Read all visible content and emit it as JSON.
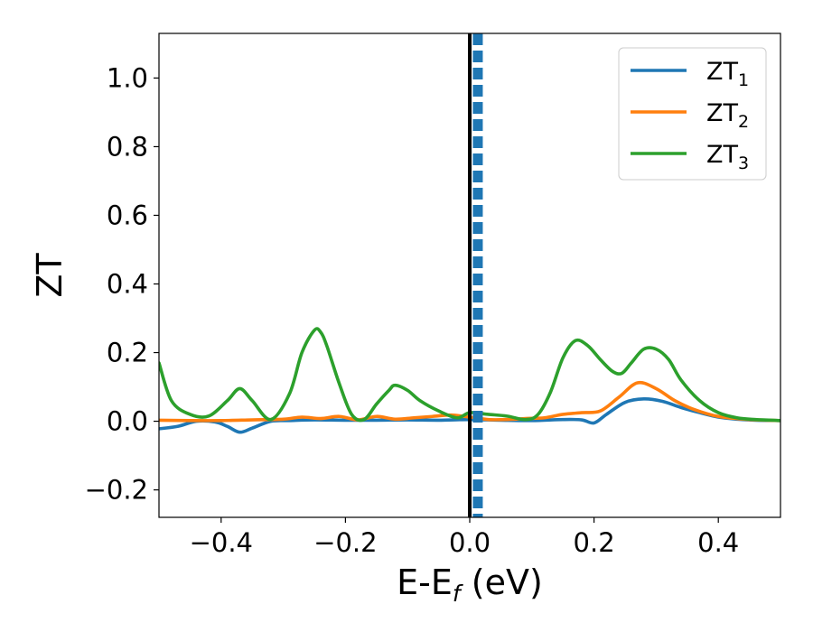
{
  "chart_data": {
    "type": "line",
    "title": "",
    "xlabel": "E-E",
    "xlabel_sub": "f",
    "xlabel_unit": " (eV)",
    "ylabel": "ZT",
    "xlim": [
      -0.5,
      0.5
    ],
    "ylim": [
      -0.28,
      1.13
    ],
    "xticks": [
      -0.4,
      -0.2,
      0.0,
      0.2,
      0.4
    ],
    "xtick_labels": [
      "−0.4",
      "−0.2",
      "0.0",
      "0.2",
      "0.4"
    ],
    "yticks": [
      -0.2,
      0.0,
      0.2,
      0.4,
      0.6,
      0.8,
      1.0
    ],
    "ytick_labels": [
      "−0.2",
      "0.0",
      "0.2",
      "0.4",
      "0.6",
      "0.8",
      "1.0"
    ],
    "grid": false,
    "legend_placement": "top-right",
    "vertical_lines": [
      {
        "x": 0.0,
        "style": "solid",
        "color": "#000000"
      },
      {
        "x": 0.013,
        "style": "dashed",
        "color": "#1f77b4"
      }
    ],
    "series": [
      {
        "name": "ZT",
        "name_sub": "1",
        "color": "#1f77b4",
        "x": [
          -0.5,
          -0.47,
          -0.44,
          -0.41,
          -0.39,
          -0.37,
          -0.35,
          -0.32,
          -0.29,
          -0.25,
          -0.2,
          -0.15,
          -0.1,
          -0.05,
          0.0,
          0.05,
          0.1,
          0.15,
          0.18,
          0.2,
          0.22,
          0.25,
          0.28,
          0.31,
          0.34,
          0.37,
          0.4,
          0.43,
          0.46,
          0.5
        ],
        "y": [
          -0.022,
          -0.015,
          0.0,
          -0.002,
          -0.015,
          -0.032,
          -0.02,
          0.0,
          0.002,
          0.004,
          0.003,
          0.003,
          0.004,
          0.003,
          0.005,
          0.003,
          0.002,
          0.005,
          0.004,
          -0.005,
          0.02,
          0.055,
          0.065,
          0.058,
          0.04,
          0.025,
          0.012,
          0.006,
          0.003,
          0.002
        ]
      },
      {
        "name": "ZT",
        "name_sub": "2",
        "color": "#ff7f0e",
        "x": [
          -0.5,
          -0.45,
          -0.4,
          -0.35,
          -0.3,
          -0.27,
          -0.24,
          -0.21,
          -0.18,
          -0.15,
          -0.12,
          -0.09,
          -0.06,
          -0.03,
          0.0,
          0.03,
          0.06,
          0.09,
          0.12,
          0.15,
          0.18,
          0.21,
          0.24,
          0.27,
          0.3,
          0.33,
          0.36,
          0.4,
          0.45,
          0.5
        ],
        "y": [
          0.003,
          0.002,
          0.002,
          0.004,
          0.006,
          0.012,
          0.008,
          0.014,
          0.004,
          0.014,
          0.006,
          0.01,
          0.014,
          0.018,
          0.012,
          0.005,
          0.005,
          0.008,
          0.01,
          0.02,
          0.025,
          0.03,
          0.07,
          0.112,
          0.095,
          0.06,
          0.035,
          0.014,
          0.005,
          0.002
        ]
      },
      {
        "name": "ZT",
        "name_sub": "3",
        "color": "#2ca02c",
        "x": [
          -0.5,
          -0.48,
          -0.45,
          -0.42,
          -0.39,
          -0.37,
          -0.35,
          -0.32,
          -0.29,
          -0.27,
          -0.25,
          -0.24,
          -0.23,
          -0.21,
          -0.19,
          -0.17,
          -0.15,
          -0.13,
          -0.12,
          -0.1,
          -0.08,
          -0.05,
          -0.02,
          0.0,
          0.03,
          0.06,
          0.09,
          0.11,
          0.13,
          0.15,
          0.17,
          0.19,
          0.21,
          0.23,
          0.245,
          0.26,
          0.28,
          0.3,
          0.32,
          0.34,
          0.37,
          0.4,
          0.43,
          0.46,
          0.5
        ],
        "y": [
          0.17,
          0.06,
          0.02,
          0.015,
          0.06,
          0.095,
          0.06,
          0.005,
          0.08,
          0.2,
          0.265,
          0.26,
          0.22,
          0.11,
          0.02,
          0.005,
          0.05,
          0.09,
          0.105,
          0.09,
          0.06,
          0.03,
          0.01,
          0.025,
          0.02,
          0.015,
          0.005,
          0.02,
          0.085,
          0.185,
          0.235,
          0.22,
          0.18,
          0.145,
          0.14,
          0.17,
          0.21,
          0.21,
          0.18,
          0.12,
          0.06,
          0.025,
          0.01,
          0.005,
          0.002
        ]
      }
    ]
  }
}
